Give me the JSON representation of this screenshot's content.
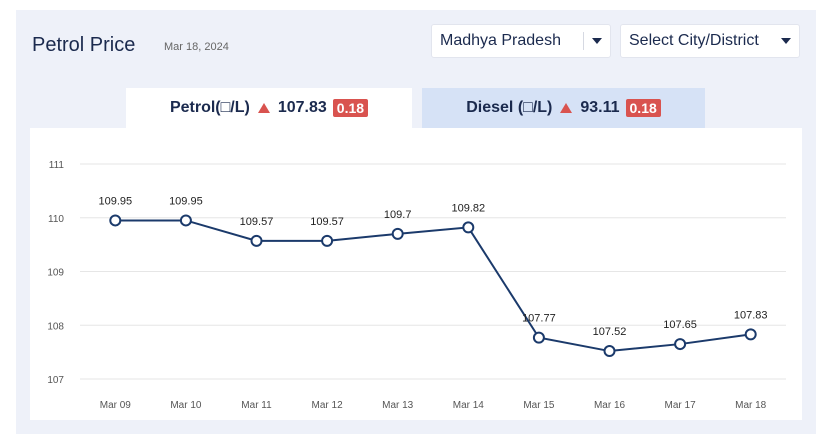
{
  "header": {
    "title": "Petrol Price",
    "date": "Mar 18, 2024"
  },
  "filters": {
    "state": "Madhya Pradesh",
    "city": "Select City/District"
  },
  "tabs": [
    {
      "name": "Petrol(□/L)",
      "price": "107.83",
      "change": "0.18",
      "direction": "up"
    },
    {
      "name": "Diesel (□/L)",
      "price": "93.11",
      "change": "0.18",
      "direction": "up"
    }
  ],
  "chart_data": {
    "type": "line",
    "categories": [
      "Mar 09",
      "Mar 10",
      "Mar 11",
      "Mar 12",
      "Mar 13",
      "Mar 14",
      "Mar 15",
      "Mar 16",
      "Mar 17",
      "Mar 18"
    ],
    "values": [
      109.95,
      109.95,
      109.57,
      109.57,
      109.7,
      109.82,
      107.77,
      107.52,
      107.65,
      107.83
    ],
    "data_labels": [
      "109.95",
      "109.95",
      "109.57",
      "109.57",
      "109.7",
      "109.82",
      "107.77",
      "107.52",
      "107.65",
      "107.83"
    ],
    "yticks": [
      107,
      108,
      109,
      110,
      111
    ],
    "ylim": [
      107,
      111
    ],
    "grid": true,
    "line_color": "#1b3a6b"
  }
}
